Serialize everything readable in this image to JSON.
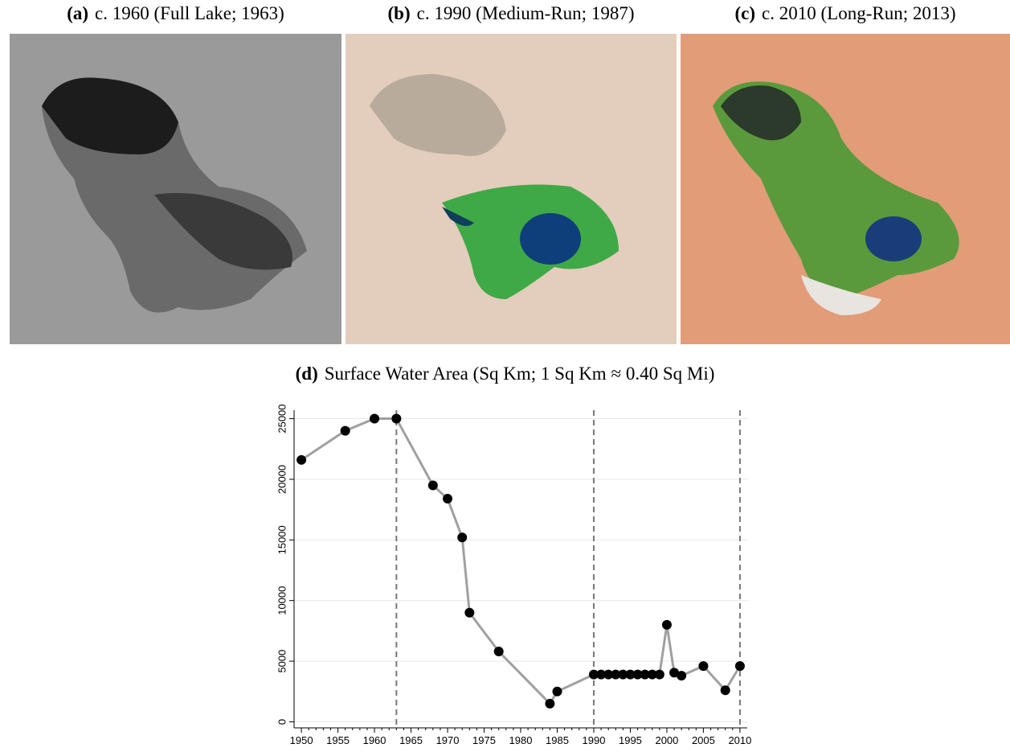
{
  "panels": [
    {
      "label": "(a)",
      "caption": "c. 1960 (Full Lake; 1963)"
    },
    {
      "label": "(b)",
      "caption": "c. 1990 (Medium-Run; 1987)"
    },
    {
      "label": "(c)",
      "caption": "c. 2010 (Long-Run; 2013)"
    }
  ],
  "chart_data": {
    "type": "line",
    "label": "(d)",
    "title": "Surface Water Area (Sq Km; 1 Sq Km ≈ 0.40 Sq Mi)",
    "x": [
      1950,
      1956,
      1960,
      1963,
      1968,
      1970,
      1972,
      1973,
      1977,
      1984,
      1985,
      1990,
      1991,
      1992,
      1993,
      1994,
      1995,
      1996,
      1997,
      1998,
      1999,
      2000,
      2001,
      2002,
      2005,
      2008,
      2010
    ],
    "values": [
      21600,
      24000,
      25000,
      25000,
      19500,
      18400,
      15200,
      9000,
      5800,
      1500,
      2500,
      3900,
      3900,
      3900,
      3900,
      3900,
      3900,
      3900,
      3900,
      3900,
      3900,
      8000,
      4050,
      3800,
      4600,
      2600,
      4600
    ],
    "color": "#a0a0a0",
    "marker_color": "#000000",
    "xlim": [
      1949,
      2011
    ],
    "xticks": [
      1950,
      1955,
      1960,
      1965,
      1970,
      1975,
      1980,
      1985,
      1990,
      1995,
      2000,
      2005,
      2010
    ],
    "ylim": [
      -500,
      25700
    ],
    "yticks": [
      0,
      5000,
      10000,
      15000,
      20000,
      25000
    ],
    "vlines": [
      1963,
      1990,
      2010
    ],
    "grid": true
  }
}
